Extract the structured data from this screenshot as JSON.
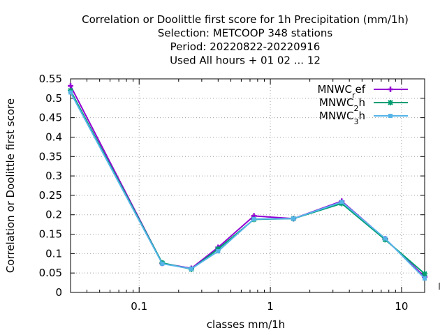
{
  "chart_data": {
    "type": "line",
    "title_lines": [
      "Correlation or Doolittle first score  for 1h Precipitation (mm/1h)",
      "Selection: METCOOP    348 stations",
      "Period: 20220822-20220916",
      "Used  All hours + 01 02 ... 12"
    ],
    "xlabel": "classes mm/1h",
    "ylabel": "Correlation or Doolittle first score",
    "x_scale": "log",
    "xlim": [
      0.03,
      15
    ],
    "ylim": [
      0,
      0.55
    ],
    "x_ticks": [
      {
        "value": 0.1,
        "label": "0.1"
      },
      {
        "value": 1,
        "label": "1"
      },
      {
        "value": 10,
        "label": "10"
      }
    ],
    "y_ticks": [
      {
        "value": 0,
        "label": "0"
      },
      {
        "value": 0.05,
        "label": "0.05"
      },
      {
        "value": 0.1,
        "label": "0.1"
      },
      {
        "value": 0.15,
        "label": "0.15"
      },
      {
        "value": 0.2,
        "label": "0.2"
      },
      {
        "value": 0.25,
        "label": "0.25"
      },
      {
        "value": 0.3,
        "label": "0.3"
      },
      {
        "value": 0.35,
        "label": "0.35"
      },
      {
        "value": 0.4,
        "label": "0.4"
      },
      {
        "value": 0.45,
        "label": "0.45"
      },
      {
        "value": 0.5,
        "label": "0.5"
      },
      {
        "value": 0.55,
        "label": "0.55"
      }
    ],
    "grid": true,
    "legend_position": "top-right",
    "x": [
      0.03,
      0.15,
      0.25,
      0.4,
      0.75,
      1.5,
      3.5,
      7.5,
      15
    ],
    "series": [
      {
        "name": "MNWC_ref",
        "legend_base": "MNWC",
        "legend_sub": "r",
        "legend_tail": "ef",
        "color": "#9400d3",
        "marker": "plus",
        "values": [
          0.532,
          0.075,
          0.062,
          0.116,
          0.197,
          0.19,
          0.235,
          0.138,
          0.04
        ]
      },
      {
        "name": "MNWC_2h",
        "legend_base": "MNWC",
        "legend_sub": "2",
        "legend_tail": "h",
        "color": "#009e73",
        "marker": "star",
        "values": [
          0.52,
          0.076,
          0.06,
          0.112,
          0.188,
          0.19,
          0.229,
          0.136,
          0.048
        ]
      },
      {
        "name": "MNWC_3h",
        "legend_base": "MNWC",
        "legend_sub": "3",
        "legend_tail": "h",
        "color": "#56b4e9",
        "marker": "box",
        "values": [
          0.515,
          0.074,
          0.061,
          0.106,
          0.189,
          0.19,
          0.233,
          0.139,
          0.036
        ]
      }
    ]
  }
}
